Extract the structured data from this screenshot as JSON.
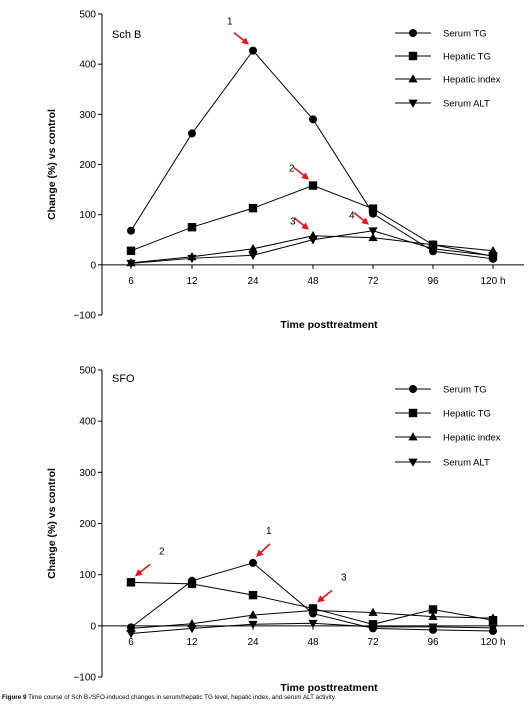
{
  "figure": {
    "caption_label": "Figure 9",
    "caption_text": "Time course of Sch B-/SFO-induced changes in serum/hepatic TG level, hepatic index, and serum ALT activity."
  },
  "chart_data": [
    {
      "type": "line",
      "title": "Sch B",
      "xlabel": "Time posttreatment",
      "ylabel": "Change (%) vs control",
      "categories": [
        "6",
        "12",
        "24",
        "48",
        "72",
        "96",
        "120 h"
      ],
      "ylim": [
        -100,
        500
      ],
      "yticks": [
        -100,
        0,
        100,
        200,
        300,
        400,
        500
      ],
      "legend_position": "top-right",
      "series": [
        {
          "name": "Serum TG",
          "marker": "circle",
          "values": [
            68,
            262,
            427,
            290,
            102,
            27,
            12
          ]
        },
        {
          "name": "Hepatic TG",
          "marker": "square",
          "values": [
            28,
            75,
            113,
            158,
            112,
            40,
            17
          ]
        },
        {
          "name": "Hepatic index",
          "marker": "triangle-up",
          "values": [
            4,
            16,
            32,
            58,
            54,
            40,
            28
          ]
        },
        {
          "name": "Serum ALT",
          "marker": "triangle-down",
          "values": [
            3,
            13,
            19,
            50,
            68,
            32,
            18
          ]
        }
      ],
      "annotations": [
        {
          "label": "1",
          "x": "24",
          "y": 427
        },
        {
          "label": "2",
          "x": "48",
          "y": 158
        },
        {
          "label": "3",
          "x": "48",
          "y": 58
        },
        {
          "label": "4",
          "x": "72",
          "y": 68
        }
      ]
    },
    {
      "type": "line",
      "title": "SFO",
      "xlabel": "Time posttreatment",
      "ylabel": "Change (%) vs control",
      "categories": [
        "6",
        "12",
        "24",
        "48",
        "72",
        "96",
        "120 h"
      ],
      "ylim": [
        -100,
        500
      ],
      "yticks": [
        -100,
        0,
        100,
        200,
        300,
        400,
        500
      ],
      "legend_position": "top-right",
      "series": [
        {
          "name": "Serum TG",
          "marker": "circle",
          "values": [
            -3,
            88,
            123,
            24,
            -5,
            -8,
            -10
          ]
        },
        {
          "name": "Hepatic TG",
          "marker": "square",
          "values": [
            85,
            82,
            60,
            34,
            3,
            32,
            11
          ]
        },
        {
          "name": "Hepatic index",
          "marker": "triangle-up",
          "values": [
            -5,
            4,
            21,
            30,
            26,
            18,
            15
          ]
        },
        {
          "name": "Serum ALT",
          "marker": "triangle-down",
          "values": [
            -15,
            -5,
            3,
            5,
            -2,
            -2,
            -4
          ]
        }
      ],
      "annotations": [
        {
          "label": "1",
          "x": "24",
          "y": 123
        },
        {
          "label": "2",
          "x": "6",
          "y": 85
        },
        {
          "label": "3",
          "x": "48",
          "y": 34
        }
      ]
    }
  ]
}
